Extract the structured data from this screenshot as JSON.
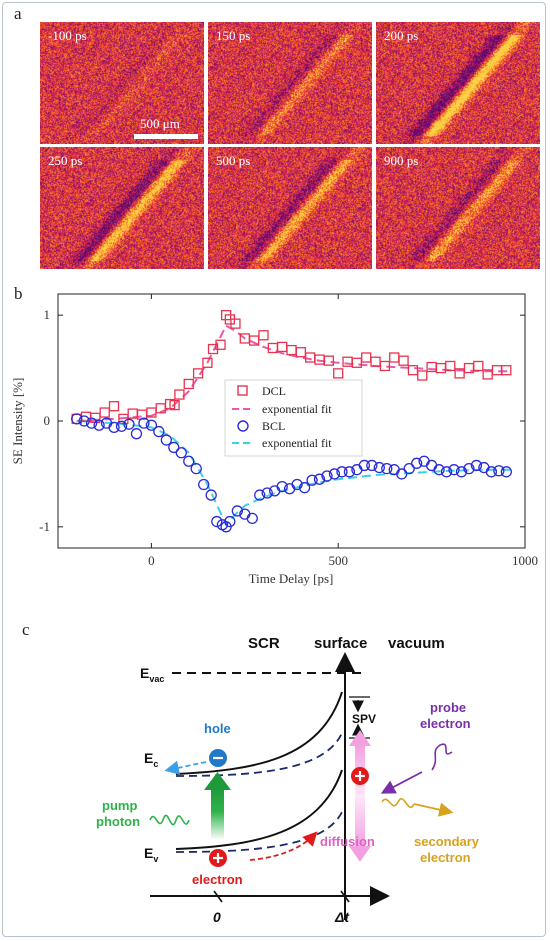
{
  "figure": {
    "panel_a": {
      "label": "a",
      "frames": [
        {
          "time_label": "-100 ps",
          "stripe_strength": 0.12
        },
        {
          "time_label": "150 ps",
          "stripe_strength": 0.35
        },
        {
          "time_label": "200 ps",
          "stripe_strength": 0.95
        },
        {
          "time_label": "250 ps",
          "stripe_strength": 0.75
        },
        {
          "time_label": "500 ps",
          "stripe_strength": 0.6
        },
        {
          "time_label": "900 ps",
          "stripe_strength": 0.5
        }
      ],
      "scalebar_label": "500 μm"
    },
    "panel_b": {
      "label": "b"
    },
    "panel_c": {
      "label": "c",
      "labels": {
        "scr": "SCR",
        "surface": "surface",
        "vacuum": "vacuum",
        "evac": "E",
        "evac_sub": "vac",
        "ec": "E",
        "ec_sub": "c",
        "ev": "E",
        "ev_sub": "v",
        "spv": "SPV",
        "hole": "hole",
        "electron": "electron",
        "pump1": "pump",
        "pump2": "photon",
        "probe1": "probe",
        "probe2": "electron",
        "diffusion": "diffusion",
        "secondary1": "secondary",
        "secondary2": "electron",
        "t0": "0",
        "dt": "Δt"
      },
      "colors": {
        "hole": "#1f78c8",
        "electron": "#e01a1a",
        "pump": "#2db34a",
        "probe": "#7a2ea8",
        "diffusion": "#e060c8",
        "secondary": "#d9a21c"
      }
    }
  },
  "chart_data": {
    "type": "scatter",
    "title": "",
    "xlabel": "Time Delay [ps]",
    "ylabel": "SE Intensity [%]",
    "xlim": [
      -250,
      1000
    ],
    "ylim": [
      -1.2,
      1.2
    ],
    "xticks": [
      "0",
      "500",
      "1000"
    ],
    "yticks": [
      "1",
      "0",
      "-1"
    ],
    "legend_position": "center",
    "legend": [
      "DCL",
      "exponential fit",
      "BCL",
      "exponential fit"
    ],
    "colors": {
      "dcl": "#e8324e",
      "dcl_fit": "#e85aa8",
      "bcl": "#2a2ad8",
      "bcl_fit": "#3ad0ea"
    },
    "series": [
      {
        "name": "DCL",
        "marker": "square",
        "x": [
          -200,
          -175,
          -150,
          -125,
          -100,
          -75,
          -50,
          -25,
          0,
          25,
          50,
          62,
          75,
          100,
          125,
          150,
          165,
          185,
          200,
          210,
          225,
          250,
          275,
          300,
          325,
          350,
          375,
          400,
          425,
          450,
          475,
          500,
          525,
          550,
          575,
          600,
          625,
          650,
          675,
          700,
          725,
          750,
          775,
          800,
          825,
          850,
          875,
          900,
          925,
          950
        ],
        "y": [
          0.02,
          0.04,
          0.03,
          0.08,
          0.14,
          0.02,
          0.07,
          0.06,
          0.08,
          0.12,
          0.16,
          0.15,
          0.25,
          0.35,
          0.45,
          0.55,
          0.68,
          0.72,
          1.0,
          0.96,
          0.92,
          0.78,
          0.76,
          0.81,
          0.69,
          0.7,
          0.67,
          0.65,
          0.6,
          0.58,
          0.57,
          0.45,
          0.56,
          0.55,
          0.6,
          0.56,
          0.52,
          0.6,
          0.57,
          0.48,
          0.43,
          0.51,
          0.5,
          0.52,
          0.45,
          0.5,
          0.52,
          0.44,
          0.48,
          0.48
        ]
      },
      {
        "name": "exponential fit",
        "x": [
          -200,
          -100,
          0,
          50,
          100,
          150,
          200,
          225,
          250,
          300,
          350,
          400,
          450,
          500,
          600,
          700,
          800,
          900,
          960
        ],
        "y": [
          0.0,
          0.02,
          0.05,
          0.12,
          0.28,
          0.55,
          0.9,
          0.85,
          0.78,
          0.7,
          0.64,
          0.6,
          0.57,
          0.55,
          0.52,
          0.5,
          0.48,
          0.47,
          0.47
        ]
      },
      {
        "name": "BCL",
        "marker": "circle",
        "x": [
          -200,
          -180,
          -160,
          -140,
          -120,
          -100,
          -80,
          -60,
          -40,
          -20,
          0,
          20,
          40,
          60,
          80,
          100,
          120,
          140,
          160,
          175,
          190,
          200,
          210,
          230,
          250,
          270,
          290,
          310,
          330,
          350,
          370,
          390,
          410,
          430,
          450,
          470,
          490,
          510,
          530,
          550,
          570,
          590,
          610,
          630,
          650,
          670,
          690,
          710,
          730,
          750,
          770,
          790,
          810,
          830,
          850,
          870,
          890,
          910,
          930,
          950
        ],
        "y": [
          0.02,
          0.0,
          -0.02,
          -0.04,
          -0.02,
          -0.06,
          -0.05,
          -0.03,
          -0.12,
          -0.02,
          -0.04,
          -0.1,
          -0.18,
          -0.25,
          -0.3,
          -0.38,
          -0.45,
          -0.6,
          -0.7,
          -0.95,
          -0.98,
          -1.0,
          -0.95,
          -0.85,
          -0.88,
          -0.92,
          -0.7,
          -0.68,
          -0.66,
          -0.62,
          -0.64,
          -0.6,
          -0.63,
          -0.56,
          -0.55,
          -0.52,
          -0.5,
          -0.48,
          -0.48,
          -0.46,
          -0.42,
          -0.42,
          -0.44,
          -0.45,
          -0.46,
          -0.5,
          -0.45,
          -0.4,
          -0.38,
          -0.42,
          -0.46,
          -0.48,
          -0.46,
          -0.48,
          -0.45,
          -0.42,
          -0.44,
          -0.48,
          -0.47,
          -0.48
        ]
      },
      {
        "name": "exponential fit",
        "x": [
          -200,
          -100,
          0,
          50,
          100,
          150,
          200,
          225,
          250,
          300,
          350,
          400,
          450,
          500,
          600,
          700,
          800,
          900,
          960
        ],
        "y": [
          0.0,
          -0.02,
          -0.06,
          -0.14,
          -0.3,
          -0.6,
          -0.98,
          -0.88,
          -0.8,
          -0.72,
          -0.66,
          -0.62,
          -0.58,
          -0.55,
          -0.51,
          -0.49,
          -0.47,
          -0.46,
          -0.46
        ]
      }
    ]
  }
}
